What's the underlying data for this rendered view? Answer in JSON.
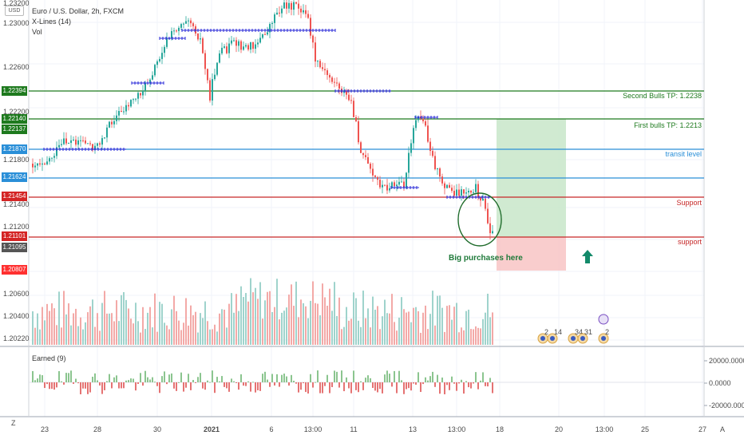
{
  "header": {
    "symbol_title": "Euro / U.S. Dollar, 2h, FXCM",
    "study_1": "X-Lines (14)",
    "study_2": "Vol"
  },
  "currency_button": "USD",
  "price_axis": {
    "ticks": [
      "1.23200",
      "1.23000",
      "1.22600",
      "1.22200",
      "1.21800",
      "1.21400",
      "1.21200",
      "1.20600",
      "1.20400",
      "1.20220"
    ],
    "tags": [
      {
        "text": "1.22394",
        "color": "#1e7a1e"
      },
      {
        "text": "1.22140",
        "color": "#1e7a1e"
      },
      {
        "text": "1.22137",
        "color": "#1e7a1e"
      },
      {
        "text": "1.21870",
        "color": "#2a8fd8"
      },
      {
        "text": "1.21624",
        "color": "#2a8fd8"
      },
      {
        "text": "1.21454",
        "color": "#d42525"
      },
      {
        "text": "1.21101",
        "color": "#d42525"
      },
      {
        "text": "1.21095",
        "color": "#555555"
      },
      {
        "text": "1.20807",
        "color": "#ff3030"
      }
    ]
  },
  "levels": [
    {
      "label": "Second Bulls TP: 1.2238",
      "color": "#1e7a1e"
    },
    {
      "label": "First bulls TP: 1.2213",
      "color": "#1e7a1e"
    },
    {
      "label": "transit level",
      "color": "#2a8fd8"
    },
    {
      "label": "",
      "color": "#2a8fd8"
    },
    {
      "label": "Support",
      "color": "#c62828"
    },
    {
      "label": "support",
      "color": "#c62828"
    }
  ],
  "annotation": "Big purchases here",
  "indicator": {
    "name": "Earned (9)",
    "ticks": [
      "20000.0000",
      "0.0000",
      "-20000.0000"
    ]
  },
  "time_axis": [
    "23",
    "28",
    "30",
    "2021",
    "6",
    "13:00",
    "11",
    "13",
    "13:00",
    "18",
    "20",
    "13:00",
    "25",
    "27",
    "A"
  ],
  "scale_button": "Z",
  "event_badges": [
    "2",
    "14",
    "34",
    "31",
    "2"
  ],
  "colors": {
    "up": "#26a69a",
    "down": "#ef5350",
    "vol_up": "#9fd3cc",
    "vol_down": "#f3a9a7",
    "xline": "#2b2bd8"
  }
}
